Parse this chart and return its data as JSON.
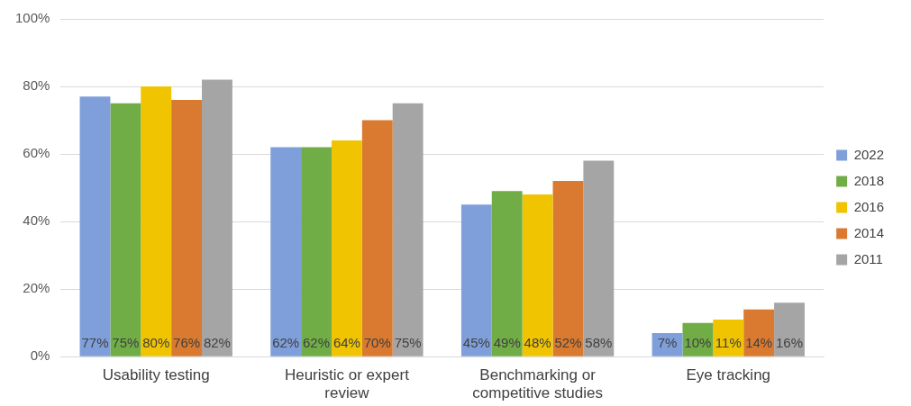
{
  "chart_data": {
    "type": "bar",
    "categories": [
      "Usability testing",
      "Heuristic or expert review",
      "Benchmarking or competitive studies",
      "Eye tracking"
    ],
    "series": [
      {
        "name": "2022",
        "color": "#7f9fdb",
        "values": [
          77,
          62,
          45,
          7
        ],
        "value_labels": [
          "77%",
          "62%",
          "45%",
          "7%"
        ]
      },
      {
        "name": "2018",
        "color": "#70ad47",
        "values": [
          75,
          62,
          49,
          10
        ],
        "value_labels": [
          "75%",
          "62%",
          "49%",
          "10%"
        ]
      },
      {
        "name": "2016",
        "color": "#f0c400",
        "values": [
          80,
          64,
          48,
          11
        ],
        "value_labels": [
          "80%",
          "64%",
          "48%",
          "11%"
        ]
      },
      {
        "name": "2014",
        "color": "#d97a30",
        "values": [
          76,
          70,
          52,
          14
        ],
        "value_labels": [
          "76%",
          "70%",
          "52%",
          "14%"
        ]
      },
      {
        "name": "2011",
        "color": "#a5a5a5",
        "values": [
          82,
          75,
          58,
          16
        ],
        "value_labels": [
          "82%",
          "75%",
          "58%",
          "16%"
        ]
      }
    ],
    "ylim": [
      0,
      100
    ],
    "yticks": [
      {
        "value": 0,
        "label": "0%"
      },
      {
        "value": 20,
        "label": "20%"
      },
      {
        "value": 40,
        "label": "40%"
      },
      {
        "value": 60,
        "label": "60%"
      },
      {
        "value": 80,
        "label": "80%"
      },
      {
        "value": 100,
        "label": "100%"
      }
    ],
    "grid": "y",
    "legend": "right"
  }
}
